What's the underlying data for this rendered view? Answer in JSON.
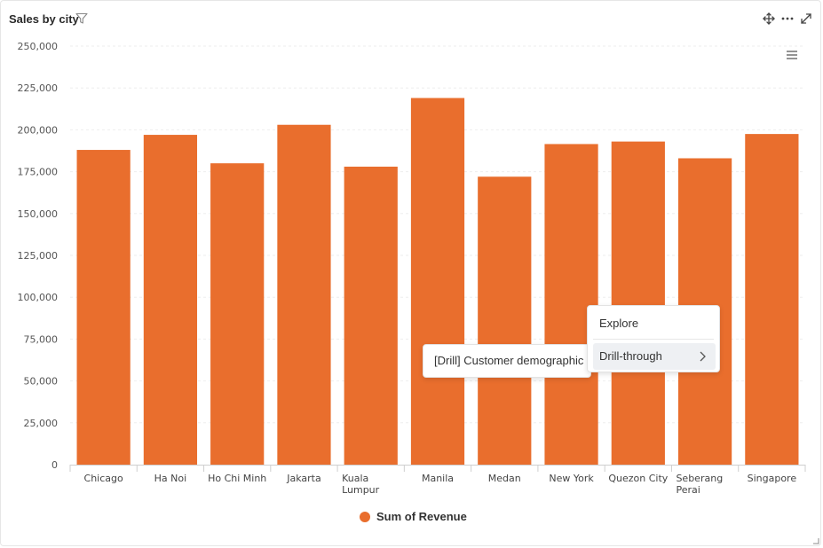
{
  "header": {
    "title": "Sales by city",
    "icons": [
      "filter-icon",
      "move-icon",
      "more-icon",
      "expand-icon"
    ]
  },
  "colors": {
    "bar": "#E96E2D",
    "grid": "#eeeeee",
    "axis": "#cfcfcf"
  },
  "chart_data": {
    "type": "bar",
    "categories": [
      "Chicago",
      "Ha Noi",
      "Ho Chi Minh",
      "Jakarta",
      "Kuala Lumpur",
      "Manila",
      "Medan",
      "New York",
      "Quezon City",
      "Seberang Perai",
      "Singapore"
    ],
    "category_lines": [
      [
        "Chicago"
      ],
      [
        "Ha Noi"
      ],
      [
        "Ho Chi Minh"
      ],
      [
        "Jakarta"
      ],
      [
        "Kuala",
        "Lumpur"
      ],
      [
        "Manila"
      ],
      [
        "Medan"
      ],
      [
        "New York"
      ],
      [
        "Quezon City"
      ],
      [
        "Seberang",
        "Perai"
      ],
      [
        "Singapore"
      ]
    ],
    "series": [
      {
        "name": "Sum of Revenue",
        "values": [
          188000,
          197000,
          180000,
          203000,
          178000,
          219000,
          172000,
          191500,
          193000,
          183000,
          197500
        ]
      }
    ],
    "yticks": [
      "0",
      "25,000",
      "50,000",
      "75,000",
      "100,000",
      "125,000",
      "150,000",
      "175,000",
      "200,000",
      "225,000",
      "250,000"
    ],
    "ylim": [
      0,
      250000
    ],
    "grid": true,
    "legend_position": "bottom-center"
  },
  "context_menu": {
    "items": [
      {
        "label": "Explore"
      },
      {
        "label": "Drill-through",
        "has_submenu": true
      }
    ],
    "submenu": {
      "items": [
        {
          "label": "[Drill] Customer demographic"
        }
      ]
    }
  },
  "toolbar": {
    "chart_menu_icon": "hamburger-icon"
  }
}
